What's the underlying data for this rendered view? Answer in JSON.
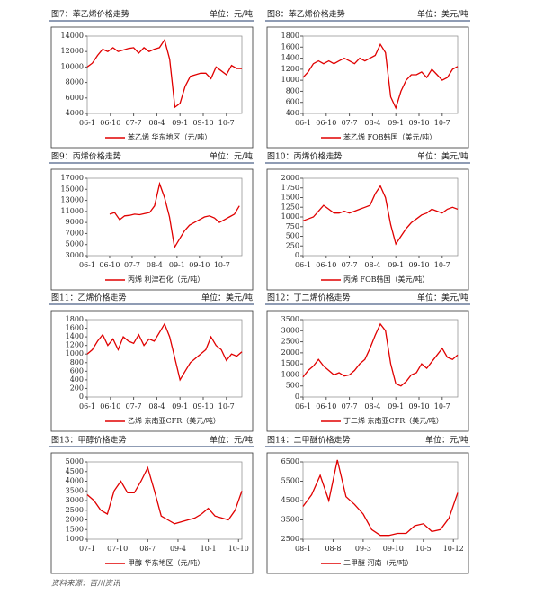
{
  "chart_data": [
    {
      "type": "line",
      "title": "图7：苯乙烯价格走势",
      "unit": "单位：元/吨",
      "color": "#e00000",
      "series_name": "苯乙烯  华东地区（元/吨）",
      "x": [
        0,
        2,
        4,
        6,
        8,
        10,
        12,
        14,
        16,
        18,
        20,
        22,
        24,
        26,
        28,
        30,
        32,
        34,
        36,
        38,
        40,
        42,
        44,
        46,
        48,
        50,
        52,
        54,
        56,
        58,
        60
      ],
      "values": [
        10000,
        10500,
        11500,
        12300,
        12000,
        12500,
        12000,
        12200,
        12400,
        12500,
        11800,
        12500,
        12000,
        12300,
        12500,
        13500,
        11000,
        4800,
        5300,
        7500,
        8800,
        9000,
        9200,
        9200,
        8500,
        10000,
        9500,
        9000,
        10200,
        9800,
        9800
      ],
      "xlim": [
        0,
        60
      ],
      "xticks": [
        {
          "value": 0,
          "label": "06-1"
        },
        {
          "value": 9,
          "label": "06-10"
        },
        {
          "value": 18,
          "label": "07-7"
        },
        {
          "value": 27,
          "label": "08-4"
        },
        {
          "value": 36,
          "label": "09-1"
        },
        {
          "value": 45,
          "label": "09-10"
        },
        {
          "value": 54,
          "label": "10-7"
        }
      ],
      "ylim": [
        4000,
        14000
      ],
      "yticks": [
        4000,
        6000,
        8000,
        10000,
        12000,
        14000
      ]
    },
    {
      "type": "line",
      "title": "图8：苯乙烯价格走势",
      "unit": "单位：美元/吨",
      "color": "#e00000",
      "series_name": "苯乙烯  FOB韩国（美元/吨）",
      "x": [
        0,
        2,
        4,
        6,
        8,
        10,
        12,
        14,
        16,
        18,
        20,
        22,
        24,
        26,
        28,
        30,
        32,
        34,
        36,
        38,
        40,
        42,
        44,
        46,
        48,
        50,
        52,
        54,
        56,
        58,
        60
      ],
      "values": [
        1050,
        1150,
        1300,
        1350,
        1300,
        1350,
        1300,
        1350,
        1400,
        1350,
        1300,
        1400,
        1350,
        1400,
        1450,
        1650,
        1500,
        700,
        500,
        800,
        1000,
        1100,
        1100,
        1150,
        1050,
        1200,
        1100,
        1000,
        1050,
        1200,
        1250
      ],
      "xlim": [
        0,
        60
      ],
      "xticks": [
        {
          "value": 0,
          "label": "06-1"
        },
        {
          "value": 9,
          "label": "06-10"
        },
        {
          "value": 18,
          "label": "07-7"
        },
        {
          "value": 27,
          "label": "08-4"
        },
        {
          "value": 36,
          "label": "09-1"
        },
        {
          "value": 45,
          "label": "09-10"
        },
        {
          "value": 54,
          "label": "10-7"
        }
      ],
      "ylim": [
        400,
        1800
      ],
      "yticks": [
        400,
        600,
        800,
        1000,
        1200,
        1400,
        1600,
        1800
      ]
    },
    {
      "type": "line",
      "title": "图9：丙烯价格走势",
      "unit": "单位：元/吨",
      "color": "#e00000",
      "series_name": "丙烯  利津石化（元/吨）",
      "x": [
        9,
        11,
        13,
        15,
        17,
        19,
        21,
        23,
        25,
        27,
        29,
        31,
        33,
        35,
        37,
        39,
        41,
        43,
        45,
        47,
        49,
        51,
        53,
        55,
        57,
        59,
        61
      ],
      "values": [
        10500,
        10800,
        9500,
        10200,
        10300,
        10500,
        10400,
        10600,
        10800,
        12000,
        16000,
        13500,
        10000,
        4500,
        6000,
        7500,
        8500,
        9000,
        9500,
        10000,
        10200,
        9800,
        9000,
        9500,
        10000,
        10500,
        12000
      ],
      "xlim": [
        0,
        62
      ],
      "xticks": [
        {
          "value": 0,
          "label": "06-1"
        },
        {
          "value": 9,
          "label": "06-10"
        },
        {
          "value": 18,
          "label": "07-7"
        },
        {
          "value": 27,
          "label": "08-4"
        },
        {
          "value": 36,
          "label": "09-1"
        },
        {
          "value": 45,
          "label": "09-10"
        },
        {
          "value": 54,
          "label": "10-7"
        }
      ],
      "ylim": [
        3000,
        17000
      ],
      "yticks": [
        3000,
        5000,
        7000,
        9000,
        11000,
        13000,
        15000,
        17000
      ]
    },
    {
      "type": "line",
      "title": "图10：丙烯价格走势",
      "unit": "单位：美元/吨",
      "color": "#e00000",
      "series_name": "丙烯  FOB韩国（美元/吨）",
      "x": [
        0,
        2,
        4,
        6,
        8,
        10,
        12,
        14,
        16,
        18,
        20,
        22,
        24,
        26,
        28,
        30,
        32,
        34,
        36,
        38,
        40,
        42,
        44,
        46,
        48,
        50,
        52,
        54,
        56,
        58,
        60
      ],
      "values": [
        900,
        950,
        1000,
        1150,
        1300,
        1200,
        1100,
        1100,
        1150,
        1100,
        1150,
        1200,
        1250,
        1300,
        1600,
        1800,
        1500,
        800,
        300,
        500,
        700,
        850,
        950,
        1050,
        1100,
        1200,
        1150,
        1100,
        1200,
        1250,
        1200
      ],
      "xlim": [
        0,
        60
      ],
      "xticks": [
        {
          "value": 0,
          "label": "06-1"
        },
        {
          "value": 9,
          "label": "06-10"
        },
        {
          "value": 18,
          "label": "07-7"
        },
        {
          "value": 27,
          "label": "08-4"
        },
        {
          "value": 36,
          "label": "09-1"
        },
        {
          "value": 45,
          "label": "09-10"
        },
        {
          "value": 54,
          "label": "10-7"
        }
      ],
      "ylim": [
        0,
        2000
      ],
      "yticks": [
        0,
        250,
        500,
        750,
        1000,
        1250,
        1500,
        1750,
        2000
      ]
    },
    {
      "type": "line",
      "title": "图11：乙烯价格走势",
      "unit": "单位：美元/吨",
      "color": "#e00000",
      "series_name": "乙烯  东南亚CFR（美元/吨）",
      "x": [
        0,
        2,
        4,
        6,
        8,
        10,
        12,
        14,
        16,
        18,
        20,
        22,
        24,
        26,
        28,
        30,
        32,
        34,
        36,
        38,
        40,
        42,
        44,
        46,
        48,
        50,
        52,
        54,
        56,
        58,
        60
      ],
      "values": [
        1000,
        1100,
        1300,
        1450,
        1200,
        1350,
        1100,
        1400,
        1300,
        1250,
        1450,
        1200,
        1350,
        1300,
        1500,
        1700,
        1400,
        900,
        400,
        600,
        800,
        900,
        1000,
        1100,
        1400,
        1200,
        1100,
        850,
        1000,
        950,
        1050
      ],
      "xlim": [
        0,
        60
      ],
      "xticks": [
        {
          "value": 0,
          "label": "06-1"
        },
        {
          "value": 9,
          "label": "06-10"
        },
        {
          "value": 18,
          "label": "07-7"
        },
        {
          "value": 27,
          "label": "08-4"
        },
        {
          "value": 36,
          "label": "09-1"
        },
        {
          "value": 45,
          "label": "09-10"
        },
        {
          "value": 54,
          "label": "10-7"
        }
      ],
      "ylim": [
        0,
        1800
      ],
      "yticks": [
        0,
        200,
        400,
        600,
        800,
        1000,
        1200,
        1400,
        1600,
        1800
      ]
    },
    {
      "type": "line",
      "title": "图12：丁二烯价格走势",
      "unit": "单位：美元/吨",
      "color": "#e00000",
      "series_name": "丁二烯  东南亚CFR（美元/吨）",
      "x": [
        0,
        2,
        4,
        6,
        8,
        10,
        12,
        14,
        16,
        18,
        20,
        22,
        24,
        26,
        28,
        30,
        32,
        34,
        36,
        38,
        40,
        42,
        44,
        46,
        48,
        50,
        52,
        54,
        56,
        58,
        60
      ],
      "values": [
        900,
        1200,
        1400,
        1700,
        1400,
        1200,
        1000,
        1100,
        950,
        1000,
        1200,
        1500,
        1700,
        2200,
        2800,
        3300,
        3000,
        1500,
        600,
        500,
        700,
        1000,
        1100,
        1500,
        1300,
        1600,
        1900,
        2200,
        1800,
        1700,
        1900
      ],
      "xlim": [
        0,
        60
      ],
      "xticks": [
        {
          "value": 0,
          "label": "06-1"
        },
        {
          "value": 9,
          "label": "06-10"
        },
        {
          "value": 18,
          "label": "07-7"
        },
        {
          "value": 27,
          "label": "08-4"
        },
        {
          "value": 36,
          "label": "09-1"
        },
        {
          "value": 45,
          "label": "09-10"
        },
        {
          "value": 54,
          "label": "10-7"
        }
      ],
      "ylim": [
        0,
        3500
      ],
      "yticks": [
        0,
        500,
        1000,
        1500,
        2000,
        2500,
        3000,
        3500
      ]
    },
    {
      "type": "line",
      "title": "图13：甲醇价格走势",
      "unit": "单位：元/吨",
      "color": "#e00000",
      "series_name": "甲醇  华东地区（元/吨）",
      "x": [
        0,
        2,
        4,
        6,
        8,
        10,
        12,
        14,
        16,
        18,
        20,
        22,
        24,
        26,
        28,
        30,
        32,
        34,
        36,
        38,
        40,
        42,
        44,
        46
      ],
      "values": [
        3300,
        3000,
        2500,
        2300,
        3500,
        4000,
        3400,
        3400,
        4000,
        4700,
        3500,
        2200,
        2000,
        1800,
        1900,
        2000,
        2100,
        2300,
        2600,
        2200,
        2100,
        2000,
        2500,
        3500
      ],
      "xlim": [
        0,
        46
      ],
      "xticks": [
        {
          "value": 0,
          "label": "07-1"
        },
        {
          "value": 9,
          "label": "07-10"
        },
        {
          "value": 18,
          "label": "08-7"
        },
        {
          "value": 27,
          "label": "09-4"
        },
        {
          "value": 36,
          "label": "10-1"
        },
        {
          "value": 45,
          "label": "10-10"
        }
      ],
      "ylim": [
        1000,
        5000
      ],
      "yticks": [
        1000,
        1500,
        2000,
        2500,
        3000,
        3500,
        4000,
        4500,
        5000
      ]
    },
    {
      "type": "line",
      "title": "图14：二甲醚价格走势",
      "unit": "单位：元/吨",
      "color": "#e00000",
      "series_name": "二甲醚  河南（元/吨）",
      "x": [
        0,
        2,
        4,
        6,
        8,
        10,
        12,
        14,
        16,
        18,
        20,
        22,
        24,
        26,
        28,
        30,
        32,
        34,
        36
      ],
      "values": [
        4200,
        4800,
        5800,
        4500,
        6600,
        4700,
        4300,
        3800,
        3000,
        2700,
        2700,
        2800,
        2800,
        3200,
        3300,
        2900,
        3000,
        3600,
        4900
      ],
      "xlim": [
        0,
        36
      ],
      "xticks": [
        {
          "value": 0,
          "label": "08-1"
        },
        {
          "value": 7,
          "label": "08-8"
        },
        {
          "value": 14,
          "label": "09-3"
        },
        {
          "value": 21,
          "label": "09-10"
        },
        {
          "value": 28,
          "label": "10-5"
        },
        {
          "value": 35,
          "label": "10-12"
        }
      ],
      "ylim": [
        2500,
        6500
      ],
      "yticks": [
        2500,
        3500,
        4500,
        5500,
        6500
      ]
    }
  ],
  "source": "资料来源：百川资讯"
}
